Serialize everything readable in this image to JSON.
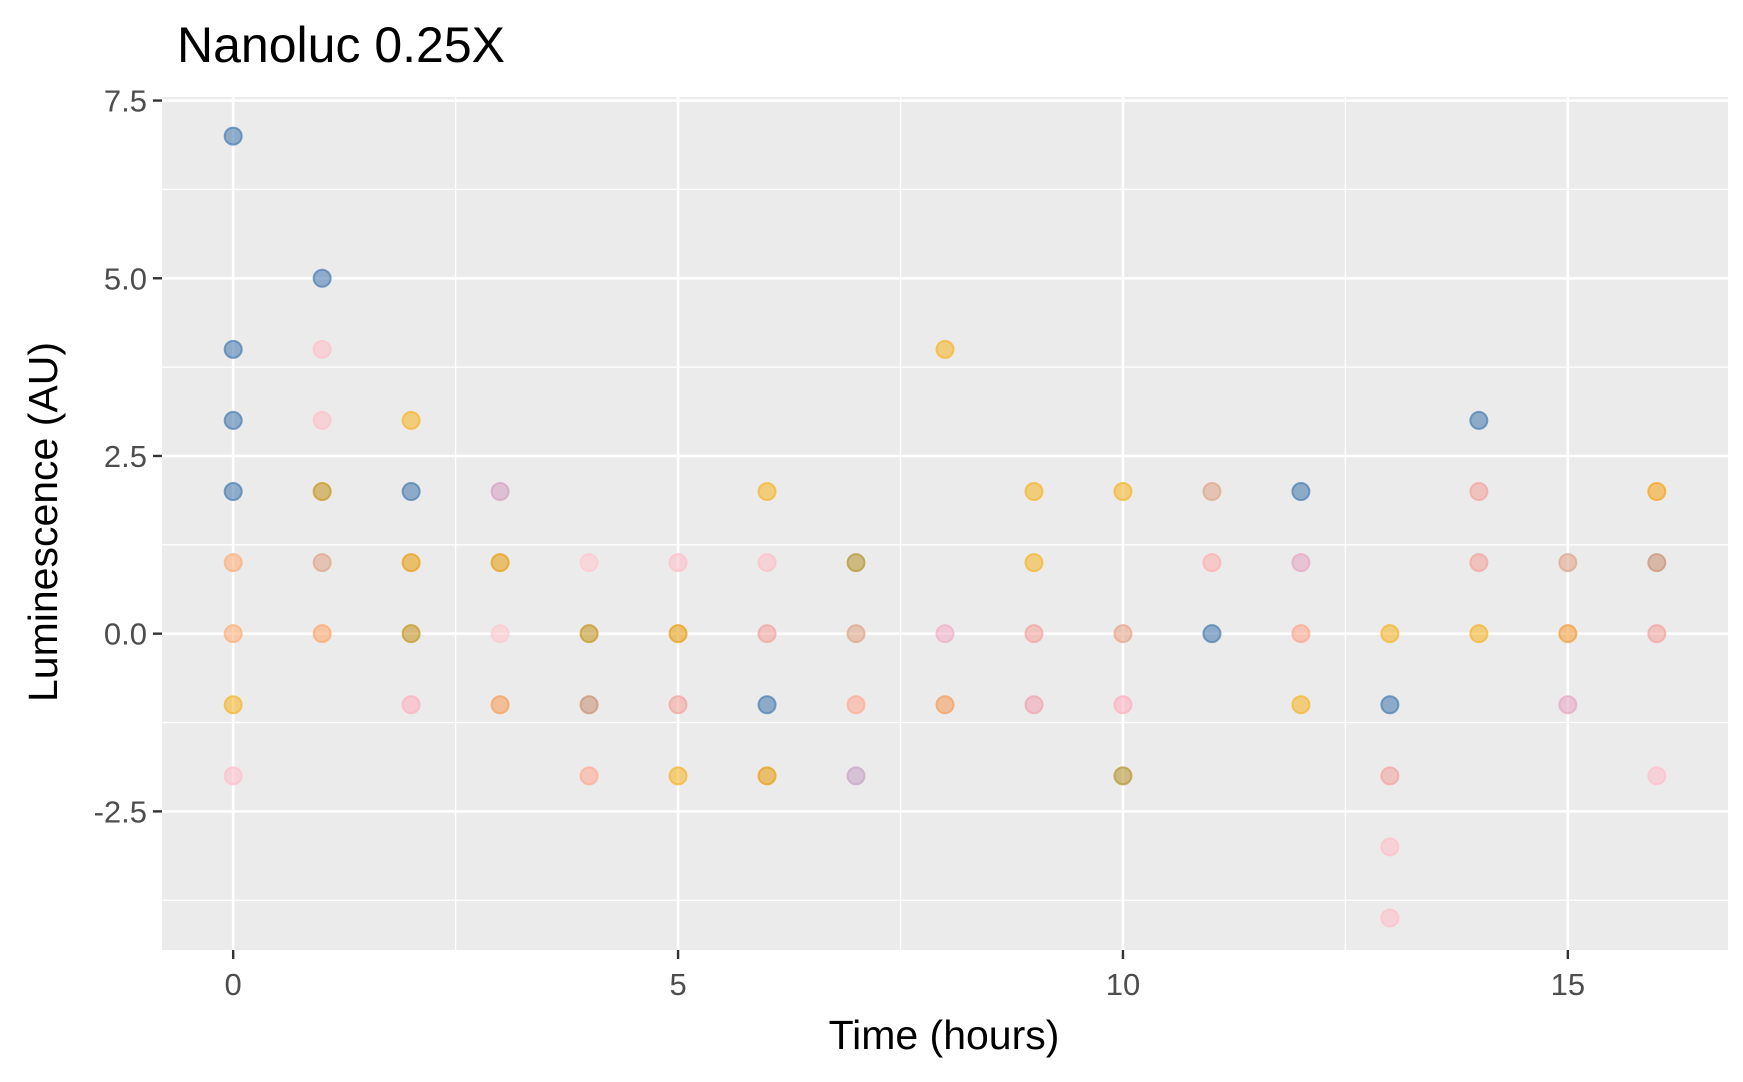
{
  "chart_data": {
    "type": "scatter",
    "title": "Nanoluc 0.25X",
    "xlabel": "Time (hours)",
    "ylabel": "Luminescence (AU)",
    "xlim": [
      -0.8,
      16.8
    ],
    "ylim": [
      -4.45,
      7.55
    ],
    "x_ticks": [
      0,
      5,
      10,
      15
    ],
    "x_tick_labels": [
      "0",
      "5",
      "10",
      "15"
    ],
    "y_ticks": [
      -2.5,
      0,
      2.5,
      5,
      7.5
    ],
    "y_tick_labels": [
      "-2.5",
      "0.0",
      "2.5",
      "5.0",
      "7.5"
    ],
    "grid": true,
    "legend": "none",
    "panel_background": "#ebebeb",
    "grid_color": "#ffffff",
    "palette": {
      "blue": "#4f81b3",
      "orange": "#f5a623",
      "light_orange": "#ffb07a",
      "pink": "#ffc0cb",
      "salmon": "#f4a6a0",
      "gold": "#c79a2a",
      "khaki": "#b89a3a",
      "mauve": "#d7a3c2",
      "tan": "#e0a88c"
    },
    "points": [
      {
        "x": 0,
        "y": 7,
        "color": "#4f81b3"
      },
      {
        "x": 0,
        "y": 4,
        "color": "#4f81b3"
      },
      {
        "x": 0,
        "y": 3,
        "color": "#4f81b3"
      },
      {
        "x": 0,
        "y": 2,
        "color": "#4f81b3"
      },
      {
        "x": 0,
        "y": 1,
        "color": "#ffb07a"
      },
      {
        "x": 0,
        "y": 0,
        "color": "#ffb07a"
      },
      {
        "x": 0,
        "y": -1,
        "color": "#f5b731"
      },
      {
        "x": 0,
        "y": -2,
        "color": "#ffc0cb"
      },
      {
        "x": 1,
        "y": 5,
        "color": "#4f81b3"
      },
      {
        "x": 1,
        "y": 4,
        "color": "#ffc0cb"
      },
      {
        "x": 1,
        "y": 3,
        "color": "#ffc0cb"
      },
      {
        "x": 1,
        "y": 2,
        "color": "#c79a2a"
      },
      {
        "x": 1,
        "y": 1,
        "color": "#e0a88c"
      },
      {
        "x": 1,
        "y": 0,
        "color": "#ffaa70"
      },
      {
        "x": 2,
        "y": 3,
        "color": "#f5b731"
      },
      {
        "x": 2,
        "y": 2,
        "color": "#4f81b3"
      },
      {
        "x": 2,
        "y": 1,
        "color": "#e8a21a"
      },
      {
        "x": 2,
        "y": 0,
        "color": "#c79a2a"
      },
      {
        "x": 2,
        "y": -1,
        "color": "#ffb0c0"
      },
      {
        "x": 3,
        "y": 2,
        "color": "#d7a3c2"
      },
      {
        "x": 3,
        "y": 1,
        "color": "#e8a21a"
      },
      {
        "x": 3,
        "y": 0,
        "color": "#ffc8cf"
      },
      {
        "x": 3,
        "y": -1,
        "color": "#f5a060"
      },
      {
        "x": 4,
        "y": 1,
        "color": "#ffc8d2"
      },
      {
        "x": 4,
        "y": 0,
        "color": "#c79a2a"
      },
      {
        "x": 4,
        "y": -1,
        "color": "#c9967a"
      },
      {
        "x": 4,
        "y": -2,
        "color": "#ffac95"
      },
      {
        "x": 5,
        "y": 1,
        "color": "#ffc0cb"
      },
      {
        "x": 5,
        "y": 0,
        "color": "#e8a21a"
      },
      {
        "x": 5,
        "y": -1,
        "color": "#f4a6a0"
      },
      {
        "x": 5,
        "y": -2,
        "color": "#f5b731"
      },
      {
        "x": 6,
        "y": 2,
        "color": "#f5b731"
      },
      {
        "x": 6,
        "y": 1,
        "color": "#ffc0cb"
      },
      {
        "x": 6,
        "y": 0,
        "color": "#f4a6a0"
      },
      {
        "x": 6,
        "y": -1,
        "color": "#4f81b3"
      },
      {
        "x": 6,
        "y": -2,
        "color": "#e8a21a"
      },
      {
        "x": 7,
        "y": 1,
        "color": "#b89a3a"
      },
      {
        "x": 7,
        "y": 0,
        "color": "#e0a88c"
      },
      {
        "x": 7,
        "y": -1,
        "color": "#ffac95"
      },
      {
        "x": 7,
        "y": -2,
        "color": "#c8a6c8"
      },
      {
        "x": 8,
        "y": 4,
        "color": "#f5b731"
      },
      {
        "x": 8,
        "y": 0,
        "color": "#f0b0c8"
      },
      {
        "x": 8,
        "y": -1,
        "color": "#f5a060"
      },
      {
        "x": 9,
        "y": 2,
        "color": "#f5b731"
      },
      {
        "x": 9,
        "y": 1,
        "color": "#f5b731"
      },
      {
        "x": 9,
        "y": 0,
        "color": "#f4a6a0"
      },
      {
        "x": 9,
        "y": -1,
        "color": "#f0a6b0"
      },
      {
        "x": 10,
        "y": 2,
        "color": "#f5b731"
      },
      {
        "x": 10,
        "y": 0,
        "color": "#e8a88c"
      },
      {
        "x": 10,
        "y": -1,
        "color": "#ffb0c0"
      },
      {
        "x": 10,
        "y": -2,
        "color": "#b89a3a"
      },
      {
        "x": 11,
        "y": 2,
        "color": "#e0a88c"
      },
      {
        "x": 11,
        "y": 1,
        "color": "#ffb0b0"
      },
      {
        "x": 11,
        "y": 0,
        "color": "#4f81b3"
      },
      {
        "x": 12,
        "y": 2,
        "color": "#4f81b3"
      },
      {
        "x": 12,
        "y": 1,
        "color": "#e6a8c4"
      },
      {
        "x": 12,
        "y": 0,
        "color": "#ffa890"
      },
      {
        "x": 12,
        "y": -1,
        "color": "#f5b731"
      },
      {
        "x": 13,
        "y": 0,
        "color": "#f5b731"
      },
      {
        "x": 13,
        "y": -1,
        "color": "#4f81b3"
      },
      {
        "x": 13,
        "y": -2,
        "color": "#f4a6a0"
      },
      {
        "x": 13,
        "y": -3,
        "color": "#ffc0cb"
      },
      {
        "x": 13,
        "y": -4,
        "color": "#ffc0cb"
      },
      {
        "x": 14,
        "y": 3,
        "color": "#4f81b3"
      },
      {
        "x": 14,
        "y": 2,
        "color": "#f4a6a0"
      },
      {
        "x": 14,
        "y": 1,
        "color": "#f4a6a0"
      },
      {
        "x": 14,
        "y": 0,
        "color": "#f5b731"
      },
      {
        "x": 15,
        "y": 1,
        "color": "#e0a88c"
      },
      {
        "x": 15,
        "y": 0,
        "color": "#f5a040"
      },
      {
        "x": 15,
        "y": -1,
        "color": "#e6a8c4"
      },
      {
        "x": 16,
        "y": 2,
        "color": "#f5a623"
      },
      {
        "x": 16,
        "y": 1,
        "color": "#c9967a"
      },
      {
        "x": 16,
        "y": 0,
        "color": "#f4a6a0"
      },
      {
        "x": 16,
        "y": -2,
        "color": "#ffc0cb"
      }
    ]
  }
}
